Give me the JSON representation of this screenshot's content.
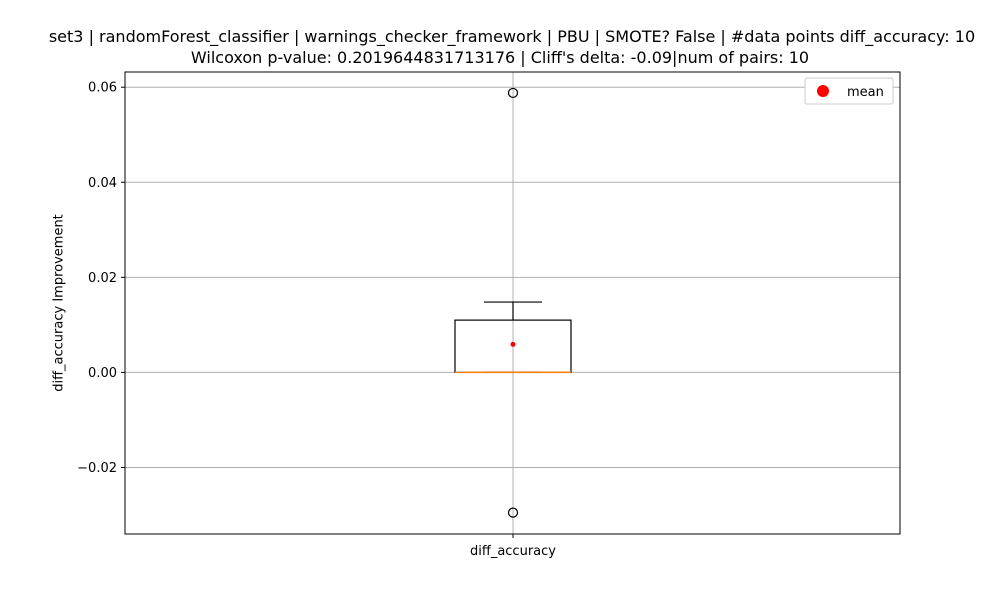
{
  "chart_data": {
    "type": "box",
    "title_line1": "set3 | randomForest_classifier | warnings_checker_framework | PBU | SMOTE? False | #data points diff_accuracy: 10",
    "title_line2": "Wilcoxon p-value: 0.2019644831713176 | Cliff's delta: -0.09|num of pairs: 10",
    "xlabel": "",
    "ylabel": "diff_accuracy Improvement",
    "categories": [
      "diff_accuracy"
    ],
    "ylim": [
      -0.034,
      0.0632
    ],
    "yticks": [
      -0.02,
      0.0,
      0.02,
      0.04,
      0.06
    ],
    "ytick_labels": [
      "−0.02",
      "0.00",
      "0.02",
      "0.04",
      "0.06"
    ],
    "box": {
      "q1": 0.0,
      "median": 0.0,
      "q3": 0.011,
      "whisker_low": 0.0,
      "whisker_high": 0.0148,
      "mean": 0.0059,
      "outliers": [
        0.0588,
        -0.0295
      ]
    },
    "legend": {
      "position": "top-right",
      "entries": [
        {
          "label": "mean",
          "color": "#ff0000"
        }
      ]
    },
    "grid": true,
    "colors": {
      "median": "#ff7f0e",
      "mean": "#ff0000",
      "box": "#000000",
      "grid": "#b0b0b0"
    }
  }
}
